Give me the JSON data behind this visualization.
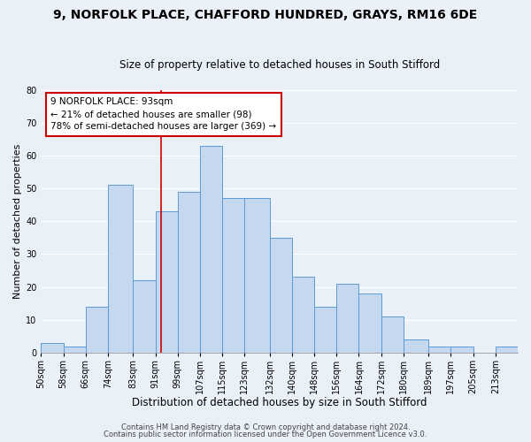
{
  "title1": "9, NORFOLK PLACE, CHAFFORD HUNDRED, GRAYS, RM16 6DE",
  "title2": "Size of property relative to detached houses in South Stifford",
  "xlabel": "Distribution of detached houses by size in South Stifford",
  "ylabel": "Number of detached properties",
  "footer1": "Contains HM Land Registry data © Crown copyright and database right 2024.",
  "footer2": "Contains public sector information licensed under the Open Government Licence v3.0.",
  "bins_labels": [
    "50sqm",
    "58sqm",
    "66sqm",
    "74sqm",
    "83sqm",
    "91sqm",
    "99sqm",
    "107sqm",
    "115sqm",
    "123sqm",
    "132sqm",
    "140sqm",
    "148sqm",
    "156sqm",
    "164sqm",
    "172sqm",
    "180sqm",
    "189sqm",
    "197sqm",
    "205sqm",
    "213sqm"
  ],
  "bar_heights": [
    3,
    2,
    14,
    51,
    22,
    43,
    49,
    63,
    47,
    47,
    35,
    23,
    14,
    21,
    18,
    11,
    4,
    2,
    2,
    0,
    2
  ],
  "bin_edges": [
    50,
    58,
    66,
    74,
    83,
    91,
    99,
    107,
    115,
    123,
    132,
    140,
    148,
    156,
    164,
    172,
    180,
    189,
    197,
    205,
    213
  ],
  "bar_color": "#c5d8f0",
  "bar_edge_color": "#5b9bd5",
  "vline_x": 93,
  "vline_color": "#cc0000",
  "annotation_line1": "9 NORFOLK PLACE: 93sqm",
  "annotation_line2": "← 21% of detached houses are smaller (98)",
  "annotation_line3": "78% of semi-detached houses are larger (369) →",
  "annotation_box_color": "#cc0000",
  "annotation_bg": "#ffffff",
  "ylim": [
    0,
    80
  ],
  "yticks": [
    0,
    10,
    20,
    30,
    40,
    50,
    60,
    70,
    80
  ],
  "bg_color": "#eaf0f8",
  "grid_color": "#ffffff",
  "title1_fontsize": 10,
  "title2_fontsize": 8.5,
  "xlabel_fontsize": 8.5,
  "ylabel_fontsize": 8,
  "tick_fontsize": 7,
  "footer_fontsize": 6,
  "ann_fontsize": 7.5
}
